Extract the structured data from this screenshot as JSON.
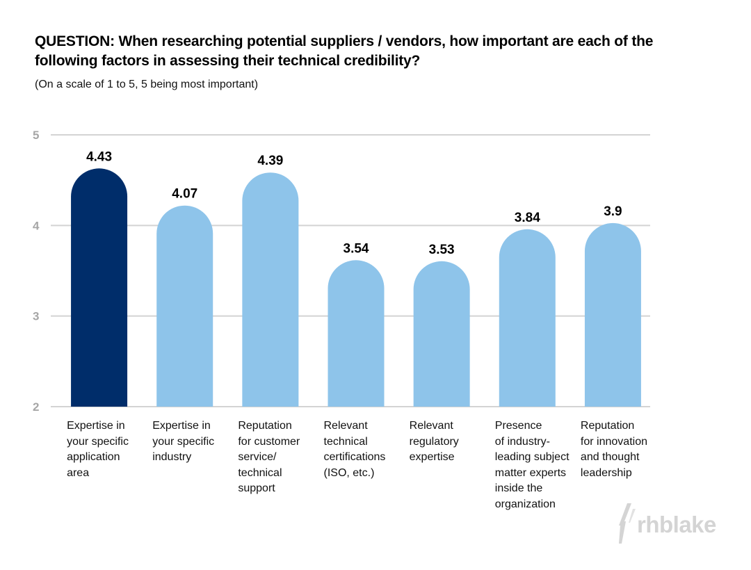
{
  "header": {
    "title": "QUESTION: When researching potential suppliers / vendors, how important are each of the following factors in assessing their technical credibility?",
    "subtitle": "(On a scale of 1 to 5, 5 being most important)"
  },
  "logo": {
    "text": "rhblake"
  },
  "chart_data": {
    "type": "bar",
    "title": "QUESTION: When researching potential suppliers / vendors, how important are each of the following factors in assessing their technical credibility?",
    "subtitle": "(On a scale of 1 to 5, 5 being most important)",
    "xlabel": "",
    "ylabel": "",
    "ylim": [
      2,
      5
    ],
    "yticks": [
      5,
      4,
      3,
      2
    ],
    "grid": true,
    "legend": "none",
    "categories": [
      "Expertise in\nyour specific\napplication\narea",
      "Expertise in\nyour specific\nindustry",
      "Reputation\nfor customer\nservice/\ntechnical\nsupport",
      "Relevant\ntechnical\ncertifications\n(ISO, etc.)",
      "Relevant\nregulatory\nexpertise",
      "Presence\nof industry-\nleading subject\nmatter experts\ninside the\norganization",
      "Reputation\nfor innovation\nand thought\nleadership"
    ],
    "values": [
      4.43,
      4.07,
      4.39,
      3.54,
      3.53,
      3.84,
      3.9
    ],
    "value_labels": [
      "4.43",
      "4.07",
      "4.39",
      "3.54",
      "3.53",
      "3.84",
      "3.9"
    ],
    "colors": [
      "#002d6a",
      "#8ec4ea",
      "#8ec4ea",
      "#8ec4ea",
      "#8ec4ea",
      "#8ec4ea",
      "#8ec4ea"
    ],
    "highlight_color": "#002d6a",
    "bar_color": "#8ec4ea",
    "grid_color": "#d3d3d3",
    "tick_color": "#a6a6a6"
  }
}
